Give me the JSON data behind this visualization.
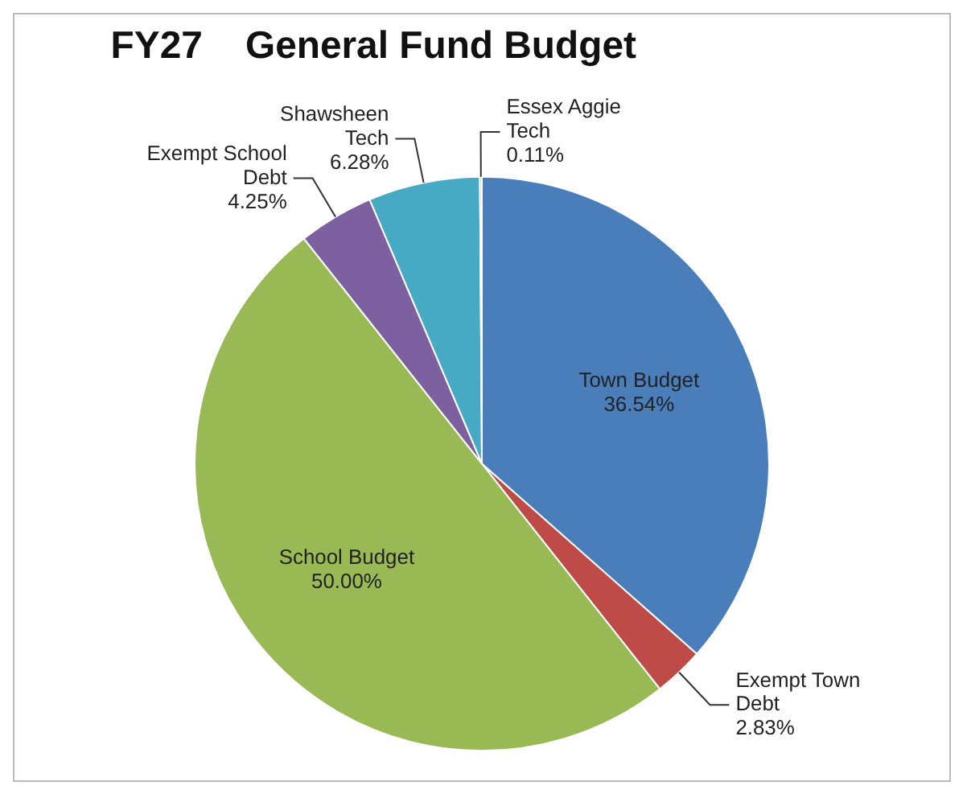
{
  "chart_data": {
    "type": "pie",
    "title": "FY27    General Fund Budget",
    "categories": [
      "Town Budget",
      "Exempt Town Debt",
      "School Budget",
      "Exempt School Debt",
      "Shawsheen Tech",
      "Essex  Aggie Tech"
    ],
    "values": [
      36.54,
      2.83,
      50.0,
      4.25,
      6.28,
      0.11
    ],
    "value_labels": [
      "36.54%",
      "2.83%",
      "50.00%",
      "4.25%",
      "6.28%",
      "0.11%"
    ],
    "colors": [
      "#4a7ebb",
      "#be4b48",
      "#98b954",
      "#7d60a0",
      "#46aac5",
      "#f79646"
    ],
    "legend": false
  }
}
